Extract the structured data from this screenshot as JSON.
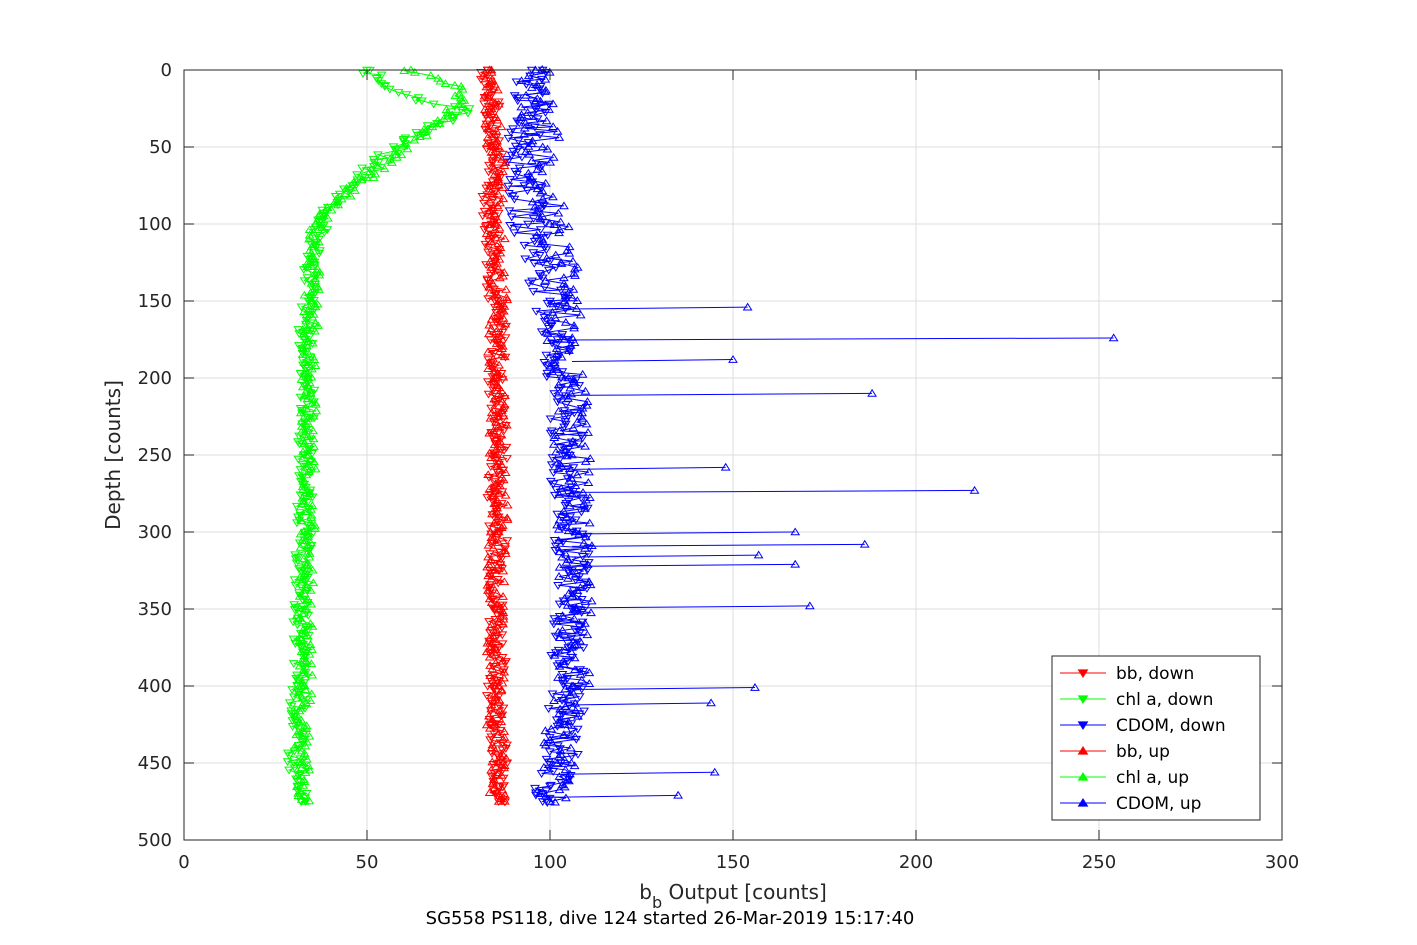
{
  "chart_data": {
    "type": "line",
    "title": "",
    "xlabel": "b",
    "xlabel_sub": "b",
    "xlabel_rest": " Output [counts]",
    "ylabel": "Depth [counts]",
    "caption": "SG558 PS118, dive 124 started 26-Mar-2019 15:17:40",
    "xlim": [
      0,
      300
    ],
    "ylim": [
      0,
      500
    ],
    "y_reversed": true,
    "grid": true,
    "legend_position": "bottom-right",
    "x_ticks": [
      "0",
      "50",
      "100",
      "150",
      "200",
      "250",
      "300"
    ],
    "y_ticks": [
      "0",
      "50",
      "100",
      "150",
      "200",
      "250",
      "300",
      "350",
      "400",
      "450",
      "500"
    ],
    "series": [
      {
        "name": "bb, down",
        "color": "#ff0000",
        "marker": "triangle-down",
        "x": [
          83,
          84,
          85,
          84,
          84,
          85,
          85,
          86,
          85,
          86,
          86,
          85,
          86,
          86,
          85,
          86,
          85,
          86,
          86,
          85,
          86,
          85,
          86
        ],
        "y": [
          0,
          25,
          50,
          75,
          100,
          125,
          150,
          175,
          200,
          225,
          250,
          275,
          300,
          325,
          350,
          375,
          400,
          425,
          450,
          460,
          465,
          470,
          475
        ]
      },
      {
        "name": "chl a, down",
        "color": "#00ff00",
        "marker": "triangle-down",
        "x": [
          50,
          55,
          65,
          78,
          70,
          60,
          52,
          46,
          38,
          35,
          34,
          33,
          34,
          33,
          33,
          32,
          32,
          32,
          31,
          31,
          30,
          31,
          32
        ],
        "y": [
          0,
          10,
          20,
          25,
          35,
          45,
          60,
          75,
          95,
          125,
          150,
          175,
          200,
          250,
          300,
          325,
          350,
          375,
          400,
          425,
          450,
          465,
          475
        ]
      },
      {
        "name": "CDOM, down",
        "color": "#0000ff",
        "marker": "triangle-down",
        "x": [
          95,
          95,
          93,
          93,
          94,
          98,
          100,
          102,
          103,
          104,
          104,
          105,
          106,
          106,
          106,
          105,
          105,
          104,
          103,
          100,
          98,
          98
        ],
        "y": [
          0,
          20,
          50,
          75,
          100,
          125,
          150,
          175,
          200,
          225,
          250,
          275,
          300,
          325,
          350,
          375,
          400,
          425,
          450,
          465,
          470,
          475
        ]
      },
      {
        "name": "bb, up",
        "color": "#ff0000",
        "marker": "triangle-up",
        "x": [
          86,
          86,
          85,
          86,
          85,
          86,
          85,
          86,
          86,
          85,
          86,
          85,
          86,
          85,
          86,
          85,
          84,
          84
        ],
        "y": [
          475,
          450,
          425,
          400,
          375,
          350,
          325,
          300,
          275,
          250,
          225,
          200,
          150,
          100,
          75,
          50,
          25,
          0
        ]
      },
      {
        "name": "chl a, up",
        "color": "#00ff00",
        "marker": "triangle-up",
        "x": [
          33,
          32,
          33,
          33,
          34,
          34,
          34,
          35,
          36,
          42,
          50,
          58,
          66,
          72,
          76,
          74,
          62
        ],
        "y": [
          475,
          450,
          400,
          350,
          300,
          250,
          200,
          150,
          100,
          85,
          70,
          55,
          40,
          30,
          20,
          10,
          0
        ]
      },
      {
        "name": "CDOM, up",
        "color": "#0000ff",
        "marker": "triangle-up",
        "x": [
          100,
          102,
          104,
          106,
          106,
          107,
          107,
          106,
          106,
          105,
          104,
          104,
          103,
          100,
          98,
          96,
          96
        ],
        "y": [
          475,
          450,
          425,
          400,
          375,
          350,
          300,
          275,
          250,
          200,
          175,
          150,
          125,
          100,
          50,
          20,
          0
        ]
      }
    ],
    "spikes": {
      "color": "#0000ff",
      "values": [
        {
          "from_x": 102,
          "x": 154,
          "y": 154
        },
        {
          "from_x": 104,
          "x": 254,
          "y": 174
        },
        {
          "from_x": 106,
          "x": 150,
          "y": 188
        },
        {
          "from_x": 105,
          "x": 188,
          "y": 210
        },
        {
          "from_x": 106,
          "x": 148,
          "y": 258
        },
        {
          "from_x": 106,
          "x": 216,
          "y": 273
        },
        {
          "from_x": 106,
          "x": 167,
          "y": 300
        },
        {
          "from_x": 106,
          "x": 186,
          "y": 308
        },
        {
          "from_x": 106,
          "x": 157,
          "y": 315
        },
        {
          "from_x": 106,
          "x": 167,
          "y": 321
        },
        {
          "from_x": 106,
          "x": 171,
          "y": 348
        },
        {
          "from_x": 106,
          "x": 156,
          "y": 401
        },
        {
          "from_x": 105,
          "x": 144,
          "y": 411
        },
        {
          "from_x": 103,
          "x": 145,
          "y": 456
        },
        {
          "from_x": 99,
          "x": 135,
          "y": 471
        }
      ]
    }
  }
}
